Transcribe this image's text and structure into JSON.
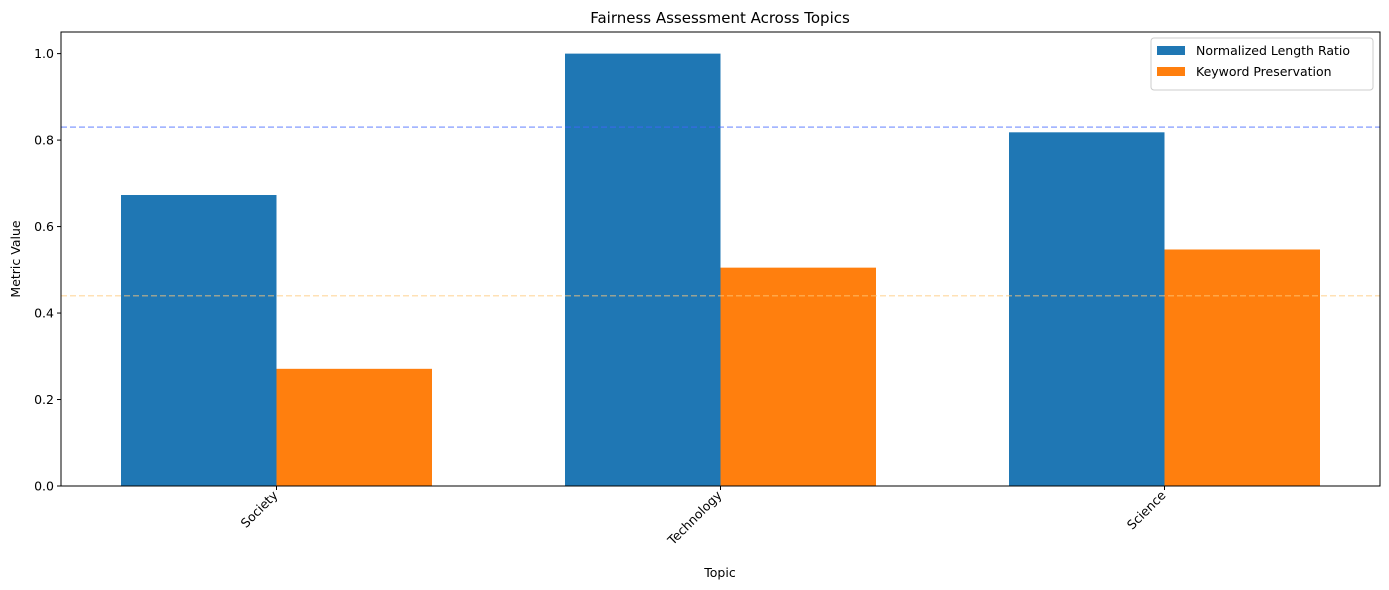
{
  "chart_data": {
    "type": "bar",
    "title": "Fairness Assessment Across Topics",
    "xlabel": "Topic",
    "ylabel": "Metric Value",
    "categories": [
      "Society",
      "Technology",
      "Science"
    ],
    "series": [
      {
        "name": "Normalized Length Ratio",
        "values": [
          0.673,
          1.0,
          0.818
        ],
        "color": "#1f77b4"
      },
      {
        "name": "Keyword Preservation",
        "values": [
          0.271,
          0.505,
          0.547
        ],
        "color": "#ff7f0e"
      }
    ],
    "reference_lines": [
      {
        "value": 0.83,
        "color": "#4466ff",
        "style": "dashed"
      },
      {
        "value": 0.44,
        "color": "#ffc878",
        "style": "dashed"
      }
    ],
    "ylim": [
      0,
      1.05
    ],
    "yticks": [
      {
        "value": 0.0,
        "label": "0.0"
      },
      {
        "value": 0.2,
        "label": "0.2"
      },
      {
        "value": 0.4,
        "label": "0.4"
      },
      {
        "value": 0.6,
        "label": "0.6"
      },
      {
        "value": 0.8,
        "label": "0.8"
      },
      {
        "value": 1.0,
        "label": "1.0"
      }
    ],
    "grid": false,
    "legend": "top-right"
  }
}
